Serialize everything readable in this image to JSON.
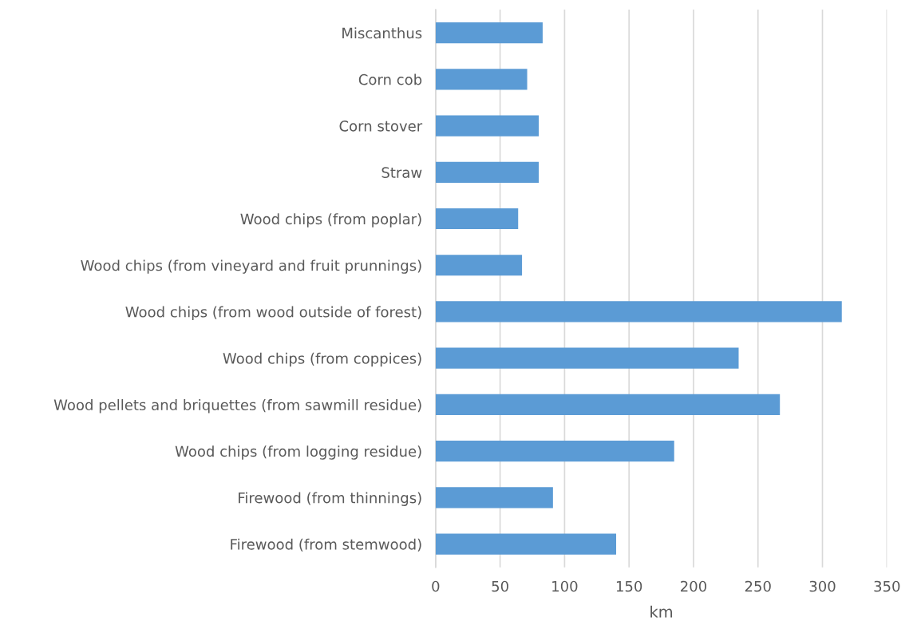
{
  "chart_data": {
    "type": "bar",
    "orientation": "horizontal",
    "xlabel": "km",
    "categories": [
      "Miscanthus",
      "Corn cob",
      "Corn stover",
      "Straw",
      "Wood chips (from poplar)",
      "Wood chips (from vineyard and fruit prunnings)",
      "Wood chips (from wood outside of forest)",
      "Wood chips (from coppices)",
      "Wood pellets and briquettes (from sawmill residue)",
      "Wood chips (from logging residue)",
      "Firewood (from thinnings)",
      "Firewood (from stemwood)"
    ],
    "values": [
      83,
      71,
      80,
      80,
      64,
      67,
      315,
      235,
      267,
      185,
      91,
      140
    ],
    "color": "#5b9bd5",
    "xlim": [
      0,
      350
    ],
    "xticks": [
      0,
      50,
      100,
      150,
      200,
      250,
      300,
      350
    ],
    "grid": "x"
  }
}
